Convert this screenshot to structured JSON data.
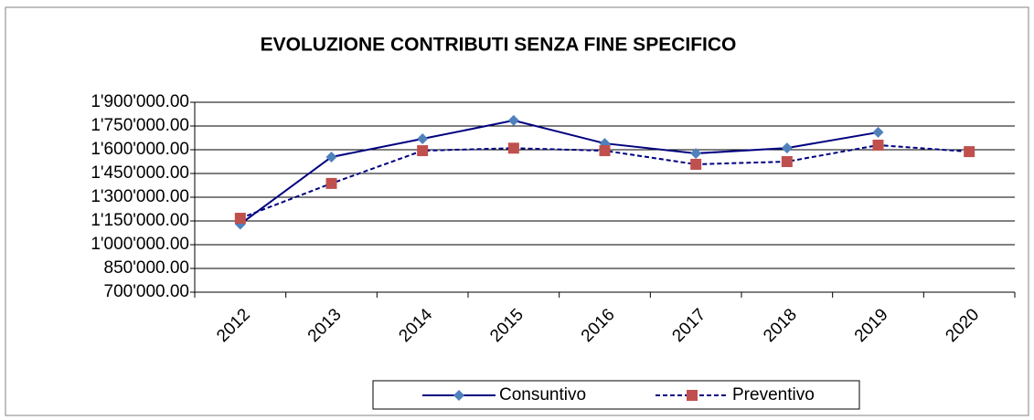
{
  "chart_data": {
    "type": "line",
    "title": "EVOLUZIONE CONTRIBUTI SENZA FINE SPECIFICO",
    "categories": [
      "2012",
      "2013",
      "2014",
      "2015",
      "2016",
      "2017",
      "2018",
      "2019",
      "2020"
    ],
    "series": [
      {
        "name": "Consuntivo",
        "color": "#000080",
        "marker_color": "#4f81bd",
        "marker": "diamond",
        "dash": false,
        "values": [
          1130000,
          1554000,
          1669000,
          1785000,
          1640000,
          1577000,
          1611000,
          1710000,
          null
        ]
      },
      {
        "name": "Preventivo",
        "color": "#000080",
        "marker_color": "#c0504d",
        "marker": "square",
        "dash": true,
        "values": [
          1167000,
          1387000,
          1594000,
          1610000,
          1594000,
          1508000,
          1525000,
          1629000,
          1588000
        ]
      }
    ],
    "ylim": [
      700000,
      1900000
    ],
    "yticks": [
      {
        "value": 700000,
        "label": "700'000.00"
      },
      {
        "value": 850000,
        "label": "850'000.00"
      },
      {
        "value": 1000000,
        "label": "1'000'000.00"
      },
      {
        "value": 1150000,
        "label": "1'150'000.00"
      },
      {
        "value": 1300000,
        "label": "1'300'000.00"
      },
      {
        "value": 1450000,
        "label": "1'450'000.00"
      },
      {
        "value": 1600000,
        "label": "1'600'000.00"
      },
      {
        "value": 1750000,
        "label": "1'750'000.00"
      },
      {
        "value": 1900000,
        "label": "1'900'000.00"
      }
    ],
    "grid": true,
    "legend": "bottom"
  }
}
